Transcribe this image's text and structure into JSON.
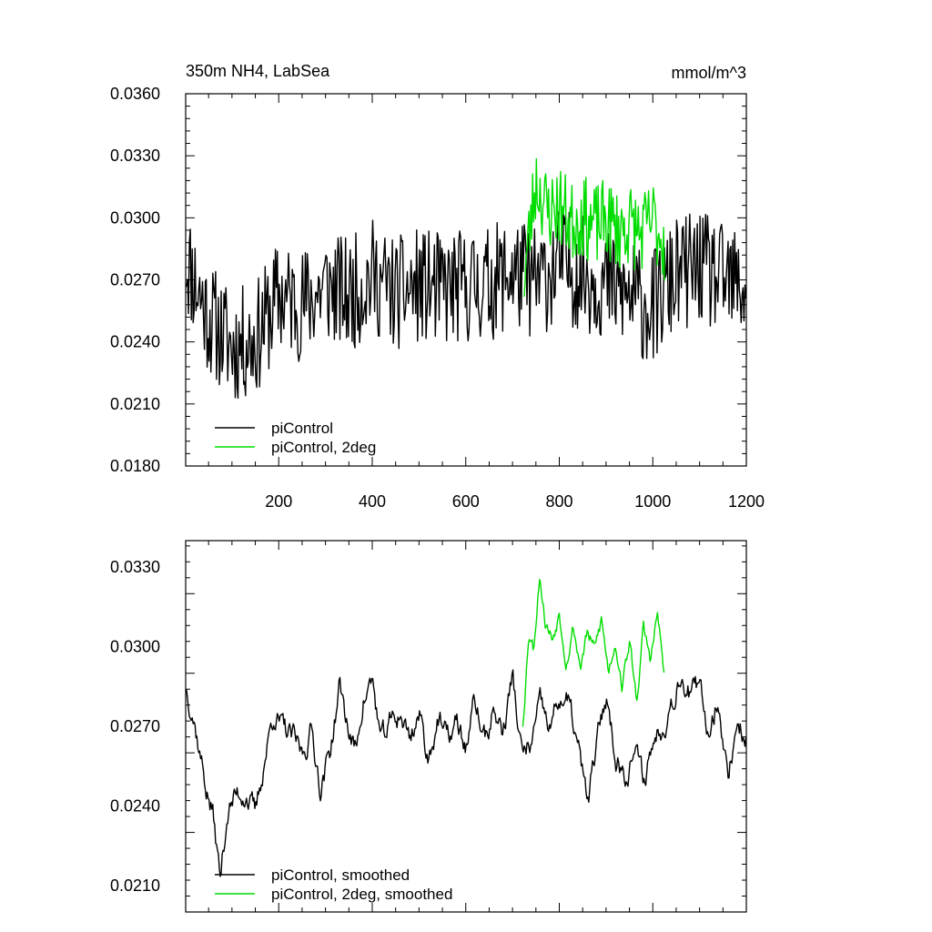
{
  "chart_data": [
    {
      "type": "line",
      "title": "350m NH4, LabSea",
      "units": "mmol/m^3",
      "xlim": [
        1,
        1200
      ],
      "ylim": [
        0.018,
        0.036
      ],
      "x_ticks": [
        200,
        400,
        600,
        800,
        1000,
        1200
      ],
      "y_ticks": [
        "0.0180",
        "0.0210",
        "0.0240",
        "0.0270",
        "0.0300",
        "0.0330",
        "0.0360"
      ],
      "legend": [
        "piControl",
        "piControl, 2deg"
      ],
      "legend_position": "bottom-left",
      "colors": [
        "#000000",
        "#00dd00"
      ],
      "series": [
        {
          "name": "piControl",
          "x": [
            1,
            50,
            100,
            150,
            200,
            250,
            300,
            350,
            400,
            450,
            500,
            550,
            600,
            650,
            700,
            750,
            800,
            850,
            900,
            950,
            1000,
            1050,
            1100,
            1150,
            1200
          ],
          "values": [
            0.0281,
            0.0252,
            0.0238,
            0.0241,
            0.0262,
            0.0258,
            0.0267,
            0.0262,
            0.0272,
            0.0263,
            0.0267,
            0.0265,
            0.0267,
            0.0268,
            0.0274,
            0.0268,
            0.0278,
            0.0273,
            0.0268,
            0.0262,
            0.0256,
            0.0272,
            0.0276,
            0.0269,
            0.0266
          ]
        },
        {
          "name": "piControl, 2deg",
          "x": [
            725,
            750,
            775,
            800,
            825,
            850,
            875,
            900,
            925,
            950,
            975,
            1000,
            1025
          ],
          "values": [
            0.0272,
            0.0318,
            0.0303,
            0.0306,
            0.0298,
            0.0301,
            0.0296,
            0.0299,
            0.0294,
            0.0297,
            0.0292,
            0.0299,
            0.0288
          ]
        }
      ]
    },
    {
      "type": "line",
      "title": "",
      "xlim": [
        1,
        1200
      ],
      "ylim": [
        0.02,
        0.034
      ],
      "y_ticks": [
        "0.0210",
        "0.0240",
        "0.0270",
        "0.0300",
        "0.0330"
      ],
      "legend": [
        "piControl, smoothed",
        "piControl, 2deg, smoothed"
      ],
      "legend_position": "bottom-left",
      "colors": [
        "#000000",
        "#00dd00"
      ],
      "series": [
        {
          "name": "piControl, smoothed",
          "x": [
            1,
            15,
            30,
            45,
            60,
            75,
            90,
            110,
            130,
            150,
            170,
            190,
            210,
            230,
            250,
            270,
            290,
            310,
            330,
            350,
            365,
            380,
            400,
            420,
            440,
            460,
            480,
            500,
            520,
            540,
            560,
            580,
            600,
            620,
            640,
            660,
            680,
            700,
            720,
            740,
            760,
            780,
            800,
            820,
            840,
            860,
            880,
            900,
            920,
            940,
            960,
            980,
            1000,
            1020,
            1040,
            1060,
            1080,
            1100,
            1120,
            1140,
            1160,
            1180,
            1200
          ],
          "values": [
            0.0285,
            0.0278,
            0.0262,
            0.0247,
            0.0236,
            0.0212,
            0.0238,
            0.0244,
            0.0246,
            0.0236,
            0.0258,
            0.0276,
            0.0268,
            0.0265,
            0.0259,
            0.0269,
            0.0247,
            0.0261,
            0.0285,
            0.0268,
            0.026,
            0.0281,
            0.0287,
            0.0263,
            0.0271,
            0.0275,
            0.0266,
            0.0275,
            0.0258,
            0.0274,
            0.0264,
            0.0271,
            0.0262,
            0.0279,
            0.0265,
            0.0276,
            0.0268,
            0.0289,
            0.0258,
            0.0263,
            0.0277,
            0.0268,
            0.0281,
            0.0278,
            0.0262,
            0.024,
            0.0262,
            0.0282,
            0.026,
            0.0252,
            0.0262,
            0.0249,
            0.0264,
            0.0271,
            0.028,
            0.0291,
            0.0283,
            0.0282,
            0.0268,
            0.0283,
            0.025,
            0.0272,
            0.0266
          ]
        },
        {
          "name": "piControl, 2deg, smoothed",
          "x": [
            722,
            735,
            745,
            758,
            770,
            785,
            800,
            815,
            830,
            845,
            860,
            875,
            890,
            905,
            920,
            935,
            950,
            965,
            980,
            995,
            1010,
            1025
          ],
          "values": [
            0.0271,
            0.0307,
            0.03,
            0.0329,
            0.031,
            0.0303,
            0.0314,
            0.0296,
            0.0308,
            0.0293,
            0.0305,
            0.0298,
            0.031,
            0.0291,
            0.0303,
            0.0286,
            0.0302,
            0.028,
            0.0306,
            0.0295,
            0.0312,
            0.0288
          ]
        }
      ]
    }
  ]
}
